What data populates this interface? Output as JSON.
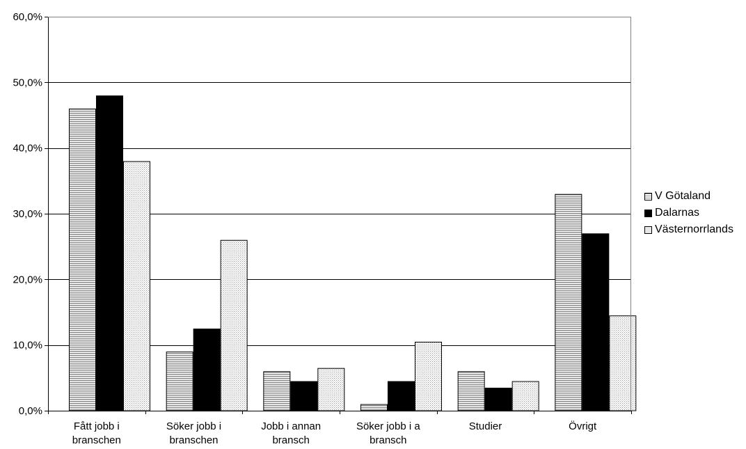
{
  "chart_data": {
    "type": "bar",
    "categories": [
      [
        "Fått jobb i",
        "branschen"
      ],
      [
        "Söker jobb i",
        "branschen"
      ],
      [
        "Jobb i annan",
        "bransch"
      ],
      [
        "Söker jobb i a",
        "bransch"
      ],
      [
        "Studier"
      ],
      [
        "Övrigt"
      ]
    ],
    "series": [
      {
        "name": "V Götaland",
        "values": [
          46.0,
          9.0,
          6.0,
          1.0,
          6.0,
          33.0
        ],
        "pattern": "hatch-horizontal",
        "color": "#c8c8c8"
      },
      {
        "name": "Dalarnas",
        "values": [
          48.0,
          12.5,
          4.5,
          4.5,
          3.5,
          27.0
        ],
        "pattern": "solid",
        "color": "#000000"
      },
      {
        "name": "Västernorrlands",
        "values": [
          38.0,
          26.0,
          6.5,
          10.5,
          4.5,
          14.5
        ],
        "pattern": "dotted",
        "color": "#e6e6e6"
      }
    ],
    "ylim": [
      0,
      60
    ],
    "yticks": [
      "0,0%",
      "10,0%",
      "20,0%",
      "30,0%",
      "40,0%",
      "50,0%",
      "60,0%"
    ],
    "ytick_values": [
      0,
      10,
      20,
      30,
      40,
      50,
      60
    ],
    "title": "",
    "xlabel": "",
    "ylabel": "",
    "grid": true,
    "legend_position": "right"
  }
}
